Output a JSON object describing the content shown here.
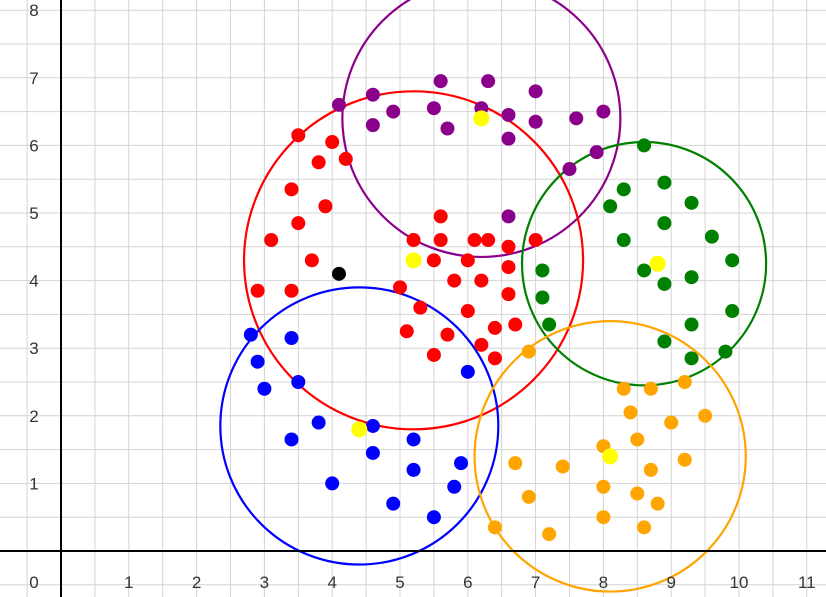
{
  "chart_data": {
    "type": "scatter",
    "title": "",
    "xlabel": "",
    "ylabel": "",
    "xlim": [
      0,
      11.2
    ],
    "ylim": [
      0,
      8.1
    ],
    "grid": true,
    "x_ticks": [
      "0",
      "1",
      "2",
      "3",
      "4",
      "5",
      "6",
      "7",
      "8",
      "9",
      "10",
      "11"
    ],
    "y_ticks": [
      "1",
      "2",
      "3",
      "4",
      "5",
      "6",
      "7",
      "8"
    ],
    "grid_color": "#d4d4d4",
    "axis_color": "#000000",
    "series": [
      {
        "color": "#8b008b",
        "circle": {
          "cx": 6.2,
          "cy": 6.4,
          "r": 2.05
        },
        "points": [
          [
            4.1,
            6.6
          ],
          [
            4.6,
            6.75
          ],
          [
            4.6,
            6.3
          ],
          [
            4.9,
            6.5
          ],
          [
            5.5,
            6.55
          ],
          [
            5.6,
            6.95
          ],
          [
            5.7,
            6.25
          ],
          [
            6.2,
            6.55
          ],
          [
            6.3,
            6.95
          ],
          [
            6.6,
            6.45
          ],
          [
            6.6,
            6.1
          ],
          [
            7.0,
            6.8
          ],
          [
            7.0,
            6.35
          ],
          [
            7.5,
            5.65
          ],
          [
            7.6,
            6.4
          ],
          [
            7.9,
            5.9
          ],
          [
            8.0,
            6.5
          ],
          [
            6.6,
            4.95
          ]
        ]
      },
      {
        "color": "#ff0000",
        "circle": {
          "cx": 5.2,
          "cy": 4.3,
          "r": 2.5
        },
        "points": [
          [
            3.5,
            6.15
          ],
          [
            3.4,
            5.35
          ],
          [
            3.5,
            4.85
          ],
          [
            3.1,
            4.6
          ],
          [
            3.7,
            4.3
          ],
          [
            2.9,
            3.85
          ],
          [
            3.4,
            3.85
          ],
          [
            3.8,
            5.75
          ],
          [
            3.9,
            5.1
          ],
          [
            4.0,
            6.05
          ],
          [
            4.2,
            5.8
          ],
          [
            5.2,
            4.6
          ],
          [
            5.5,
            4.3
          ],
          [
            5.6,
            4.95
          ],
          [
            5.6,
            4.6
          ],
          [
            6.1,
            4.6
          ],
          [
            6.3,
            4.6
          ],
          [
            6.6,
            4.5
          ],
          [
            7.0,
            4.6
          ],
          [
            6.0,
            4.3
          ],
          [
            6.6,
            4.2
          ],
          [
            5.8,
            4.0
          ],
          [
            6.2,
            4.0
          ],
          [
            5.0,
            3.9
          ],
          [
            5.3,
            3.6
          ],
          [
            6.0,
            3.55
          ],
          [
            6.6,
            3.8
          ],
          [
            5.1,
            3.25
          ],
          [
            5.7,
            3.2
          ],
          [
            6.4,
            3.3
          ],
          [
            6.7,
            3.35
          ],
          [
            5.5,
            2.9
          ],
          [
            6.2,
            3.05
          ],
          [
            6.4,
            2.85
          ]
        ]
      },
      {
        "color": "#008000",
        "circle": {
          "cx": 8.6,
          "cy": 4.25,
          "r": 1.8
        },
        "points": [
          [
            8.6,
            6.0
          ],
          [
            8.3,
            5.35
          ],
          [
            8.1,
            5.1
          ],
          [
            8.9,
            5.45
          ],
          [
            9.3,
            5.15
          ],
          [
            8.9,
            4.85
          ],
          [
            8.3,
            4.6
          ],
          [
            9.6,
            4.65
          ],
          [
            9.9,
            4.3
          ],
          [
            7.1,
            4.15
          ],
          [
            8.6,
            4.15
          ],
          [
            8.9,
            3.95
          ],
          [
            9.3,
            4.05
          ],
          [
            7.1,
            3.75
          ],
          [
            7.2,
            3.35
          ],
          [
            9.3,
            3.35
          ],
          [
            9.9,
            3.55
          ],
          [
            8.9,
            3.1
          ],
          [
            9.3,
            2.85
          ],
          [
            9.8,
            2.95
          ]
        ]
      },
      {
        "color": "#0000ff",
        "circle": {
          "cx": 4.4,
          "cy": 1.85,
          "r": 2.05
        },
        "points": [
          [
            2.8,
            3.2
          ],
          [
            3.4,
            3.15
          ],
          [
            2.9,
            2.8
          ],
          [
            3.0,
            2.4
          ],
          [
            3.5,
            2.5
          ],
          [
            3.8,
            1.9
          ],
          [
            3.4,
            1.65
          ],
          [
            4.6,
            1.85
          ],
          [
            5.2,
            1.65
          ],
          [
            4.6,
            1.45
          ],
          [
            5.2,
            1.2
          ],
          [
            4.0,
            1.0
          ],
          [
            4.9,
            0.7
          ],
          [
            5.5,
            0.5
          ],
          [
            5.8,
            0.95
          ],
          [
            5.9,
            1.3
          ],
          [
            6.0,
            2.65
          ]
        ]
      },
      {
        "color": "#ffa500",
        "circle": {
          "cx": 8.1,
          "cy": 1.4,
          "r": 2.0
        },
        "points": [
          [
            6.9,
            2.95
          ],
          [
            8.3,
            2.4
          ],
          [
            8.7,
            2.4
          ],
          [
            9.2,
            2.5
          ],
          [
            8.4,
            2.05
          ],
          [
            9.5,
            2.0
          ],
          [
            9.0,
            1.9
          ],
          [
            8.5,
            1.65
          ],
          [
            8.0,
            1.55
          ],
          [
            9.2,
            1.35
          ],
          [
            6.7,
            1.3
          ],
          [
            7.4,
            1.25
          ],
          [
            8.7,
            1.2
          ],
          [
            8.0,
            0.95
          ],
          [
            6.9,
            0.8
          ],
          [
            8.5,
            0.85
          ],
          [
            8.8,
            0.7
          ],
          [
            8.0,
            0.5
          ],
          [
            8.6,
            0.35
          ],
          [
            6.4,
            0.35
          ],
          [
            7.2,
            0.25
          ]
        ]
      }
    ],
    "centroids": {
      "color": "#ffff00",
      "points": [
        [
          6.2,
          6.4
        ],
        [
          5.2,
          4.3
        ],
        [
          8.8,
          4.25
        ],
        [
          4.4,
          1.8
        ],
        [
          8.1,
          1.4
        ]
      ]
    },
    "extra_point": {
      "color": "#000000",
      "x": 4.1,
      "y": 4.1
    }
  }
}
